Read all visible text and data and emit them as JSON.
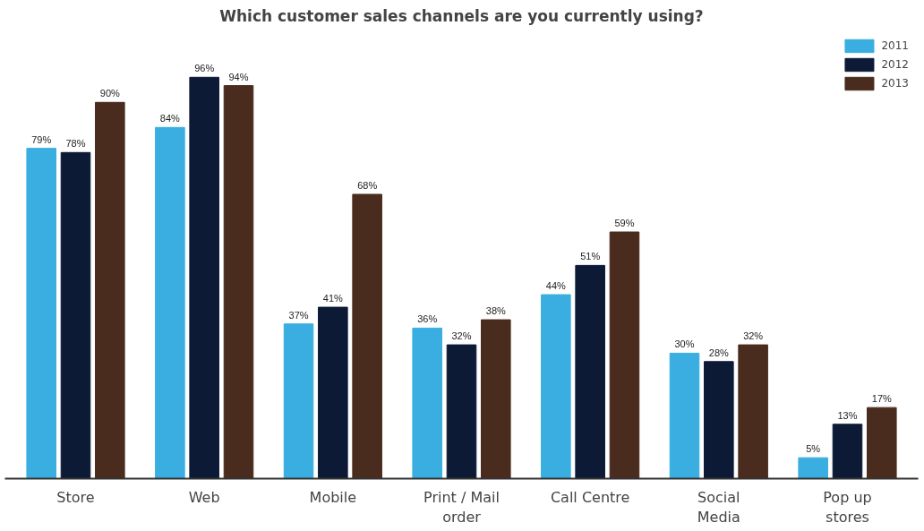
{
  "chart_data": {
    "type": "bar",
    "title": "Which customer sales channels are you currently using?",
    "categories": [
      "Store",
      "Web",
      "Mobile",
      "Print / Mail\norder",
      "Call Centre",
      "Social\nMedia",
      "Pop up\nstores"
    ],
    "series": [
      {
        "name": "2011",
        "color": "#3aaee0",
        "values": [
          79,
          84,
          37,
          36,
          44,
          30,
          5
        ],
        "value_labels": [
          "79%",
          "84%",
          "37%",
          "36%",
          "44%",
          "30%",
          "5%"
        ]
      },
      {
        "name": "2012",
        "color": "#0d1a36",
        "values": [
          78,
          96,
          41,
          32,
          51,
          28,
          13
        ],
        "value_labels": [
          "78%",
          "96%",
          "41%",
          "32%",
          "51%",
          "28%",
          "13%"
        ]
      },
      {
        "name": "2013",
        "color": "#4a2c1e",
        "values": [
          90,
          94,
          68,
          38,
          59,
          32,
          17
        ],
        "value_labels": [
          "90%",
          "94%",
          "68%",
          "38%",
          "59%",
          "32%",
          "17%"
        ]
      }
    ],
    "legend": "top right",
    "grid": false
  }
}
